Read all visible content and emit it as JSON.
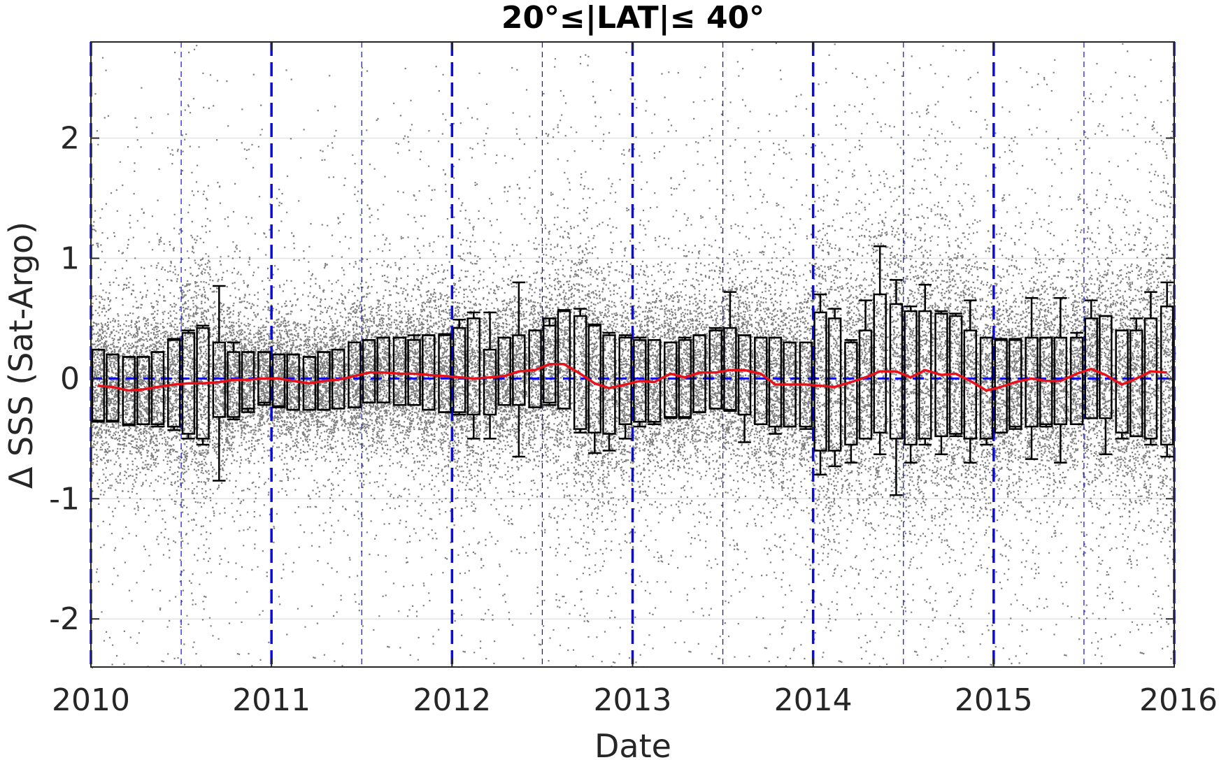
{
  "chart_data": {
    "type": "scatter",
    "title": "20°≤|LAT|≤ 40°",
    "xlabel": "Date",
    "ylabel": "Δ SSS (Sat-Argo)",
    "xlim": [
      2010,
      2016
    ],
    "ylim": [
      -2.4,
      2.8
    ],
    "xticks": [
      2010,
      2011,
      2012,
      2013,
      2014,
      2015,
      2016
    ],
    "xtick_labels": [
      "2010",
      "2011",
      "2012",
      "2013",
      "2014",
      "2015",
      "2016"
    ],
    "yticks": [
      -2,
      -1,
      0,
      1,
      2
    ],
    "ytick_labels": [
      "-2",
      "-1",
      "0",
      "1",
      "2"
    ],
    "grid": "horizontal",
    "zero_line": 0,
    "year_lines": [
      2010,
      2011,
      2012,
      2013,
      2014,
      2015,
      2016
    ],
    "halfyear_lines": [
      2010.5,
      2011.5,
      2012.5,
      2013.5,
      2014.5,
      2015.5
    ],
    "colors": {
      "scatter": "#7f7f7f",
      "box": "#000000",
      "median": "#e8111a",
      "reference": "#0a0ae6",
      "grid": "#e3e3e3"
    },
    "series": [
      {
        "kind": "monthly_boxplot",
        "x": [
          2010.04,
          2010.12,
          2010.21,
          2010.29,
          2010.37,
          2010.46,
          2010.54,
          2010.62,
          2010.71,
          2010.79,
          2010.87,
          2010.96,
          2011.04,
          2011.12,
          2011.21,
          2011.29,
          2011.37,
          2011.46,
          2011.54,
          2011.62,
          2011.71,
          2011.79,
          2011.87,
          2011.96,
          2012.04,
          2012.12,
          2012.21,
          2012.29,
          2012.37,
          2012.46,
          2012.54,
          2012.62,
          2012.71,
          2012.79,
          2012.87,
          2012.96,
          2013.04,
          2013.12,
          2013.21,
          2013.29,
          2013.37,
          2013.46,
          2013.54,
          2013.62,
          2013.71,
          2013.79,
          2013.87,
          2013.96,
          2014.04,
          2014.12,
          2014.21,
          2014.29,
          2014.37,
          2014.46,
          2014.54,
          2014.62,
          2014.71,
          2014.79,
          2014.87,
          2014.96,
          2015.04,
          2015.12,
          2015.21,
          2015.29,
          2015.37,
          2015.46,
          2015.54,
          2015.62,
          2015.71,
          2015.79,
          2015.87,
          2015.96
        ],
        "median": [
          -0.06,
          -0.07,
          -0.1,
          -0.09,
          -0.07,
          -0.05,
          -0.04,
          -0.04,
          -0.03,
          -0.01,
          -0.01,
          0.0,
          0.0,
          -0.02,
          -0.04,
          -0.02,
          -0.01,
          0.02,
          0.05,
          0.05,
          0.04,
          0.04,
          0.03,
          0.02,
          0.01,
          0.0,
          0.01,
          0.02,
          0.06,
          0.07,
          0.12,
          0.12,
          0.04,
          -0.04,
          -0.08,
          -0.05,
          -0.02,
          -0.03,
          0.04,
          0.01,
          0.05,
          0.05,
          0.07,
          0.07,
          0.04,
          -0.05,
          -0.05,
          -0.05,
          -0.06,
          -0.07,
          -0.03,
          0.01,
          0.06,
          0.06,
          0.01,
          0.07,
          0.03,
          0.04,
          -0.02,
          -0.1,
          -0.07,
          -0.03,
          0.0,
          -0.02,
          -0.02,
          0.04,
          0.08,
          0.03,
          -0.05,
          0.0,
          0.06,
          0.05
        ],
        "q1": [
          -0.35,
          -0.35,
          -0.38,
          -0.38,
          -0.38,
          -0.4,
          -0.46,
          -0.5,
          -0.32,
          -0.32,
          -0.28,
          -0.22,
          -0.24,
          -0.26,
          -0.26,
          -0.26,
          -0.25,
          -0.24,
          -0.2,
          -0.2,
          -0.22,
          -0.22,
          -0.26,
          -0.28,
          -0.28,
          -0.3,
          -0.3,
          -0.22,
          -0.22,
          -0.24,
          -0.2,
          -0.25,
          -0.42,
          -0.45,
          -0.46,
          -0.38,
          -0.36,
          -0.36,
          -0.32,
          -0.32,
          -0.28,
          -0.25,
          -0.26,
          -0.3,
          -0.38,
          -0.4,
          -0.4,
          -0.4,
          -0.6,
          -0.6,
          -0.55,
          -0.5,
          -0.45,
          -0.5,
          -0.55,
          -0.5,
          -0.48,
          -0.46,
          -0.5,
          -0.5,
          -0.45,
          -0.42,
          -0.4,
          -0.4,
          -0.38,
          -0.38,
          -0.33,
          -0.33,
          -0.45,
          -0.48,
          -0.5,
          -0.55
        ],
        "q3": [
          0.24,
          0.2,
          0.18,
          0.18,
          0.22,
          0.32,
          0.38,
          0.42,
          0.3,
          0.22,
          0.22,
          0.22,
          0.2,
          0.2,
          0.18,
          0.22,
          0.24,
          0.3,
          0.32,
          0.34,
          0.34,
          0.32,
          0.36,
          0.36,
          0.42,
          0.5,
          0.24,
          0.34,
          0.36,
          0.4,
          0.5,
          0.56,
          0.52,
          0.44,
          0.36,
          0.34,
          0.32,
          0.32,
          0.3,
          0.32,
          0.36,
          0.4,
          0.42,
          0.36,
          0.34,
          0.34,
          0.3,
          0.3,
          0.55,
          0.5,
          0.3,
          0.4,
          0.7,
          0.62,
          0.56,
          0.56,
          0.54,
          0.52,
          0.4,
          0.34,
          0.32,
          0.32,
          0.34,
          0.34,
          0.34,
          0.34,
          0.5,
          0.52,
          0.4,
          0.4,
          0.5,
          0.6
        ],
        "whisk_lo": [
          -0.36,
          -0.36,
          -0.39,
          -0.38,
          -0.4,
          -0.43,
          -0.5,
          -0.55,
          -0.85,
          -0.34,
          -0.25,
          -0.2,
          -0.23,
          -0.26,
          -0.26,
          -0.26,
          -0.25,
          -0.24,
          -0.2,
          -0.2,
          -0.22,
          -0.22,
          -0.26,
          -0.28,
          -0.3,
          -0.5,
          -0.5,
          -0.22,
          -0.65,
          -0.24,
          -0.22,
          -0.25,
          -0.45,
          -0.62,
          -0.6,
          -0.5,
          -0.4,
          -0.38,
          -0.33,
          -0.33,
          -0.28,
          -0.25,
          -0.27,
          -0.53,
          -0.38,
          -0.46,
          -0.4,
          -0.42,
          -0.8,
          -0.73,
          -0.7,
          -0.5,
          -0.63,
          -0.97,
          -0.7,
          -0.55,
          -0.63,
          -0.48,
          -0.7,
          -0.55,
          -0.45,
          -0.4,
          -0.67,
          -0.38,
          -0.7,
          -0.38,
          -0.33,
          -0.63,
          -0.5,
          -0.48,
          -0.55,
          -0.65
        ],
        "whisk_hi": [
          0.24,
          0.2,
          0.18,
          0.18,
          0.22,
          0.33,
          0.4,
          0.44,
          0.77,
          0.3,
          0.22,
          0.22,
          0.2,
          0.2,
          0.18,
          0.22,
          0.24,
          0.3,
          0.32,
          0.34,
          0.34,
          0.36,
          0.36,
          0.37,
          0.49,
          0.55,
          0.55,
          0.34,
          0.8,
          0.4,
          0.44,
          0.57,
          0.58,
          0.45,
          0.38,
          0.36,
          0.34,
          0.32,
          0.3,
          0.34,
          0.36,
          0.42,
          0.72,
          0.36,
          0.34,
          0.34,
          0.3,
          0.3,
          0.7,
          0.58,
          0.32,
          0.65,
          1.1,
          0.82,
          0.6,
          0.78,
          0.56,
          0.54,
          0.65,
          0.34,
          0.33,
          0.33,
          0.67,
          0.34,
          0.67,
          0.38,
          0.65,
          0.52,
          0.4,
          0.5,
          0.72,
          0.8
        ]
      }
    ]
  }
}
